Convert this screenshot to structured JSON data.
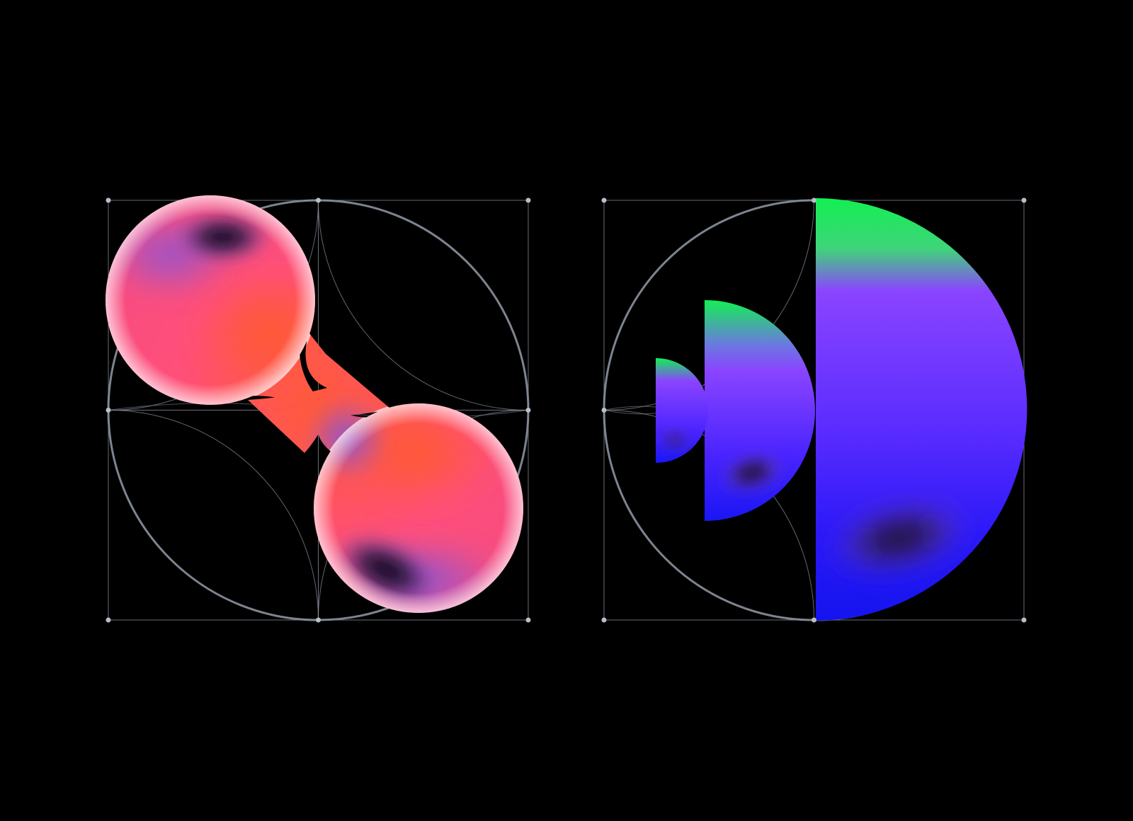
{
  "background_color": "#000000",
  "construction_line_color": "#8b92a0",
  "construction_point_color": "#b9bfc9",
  "figures": [
    {
      "name": "pink-dumbbell-mark",
      "colors": [
        "#ff4f7a",
        "#ff5a3a",
        "#8a55d6",
        "#120f24",
        "#f3e8f2"
      ]
    },
    {
      "name": "blue-half-circles-mark",
      "colors": [
        "#19f05a",
        "#8a44ff",
        "#3a1eff",
        "#1414f0",
        "#120f24"
      ]
    }
  ]
}
